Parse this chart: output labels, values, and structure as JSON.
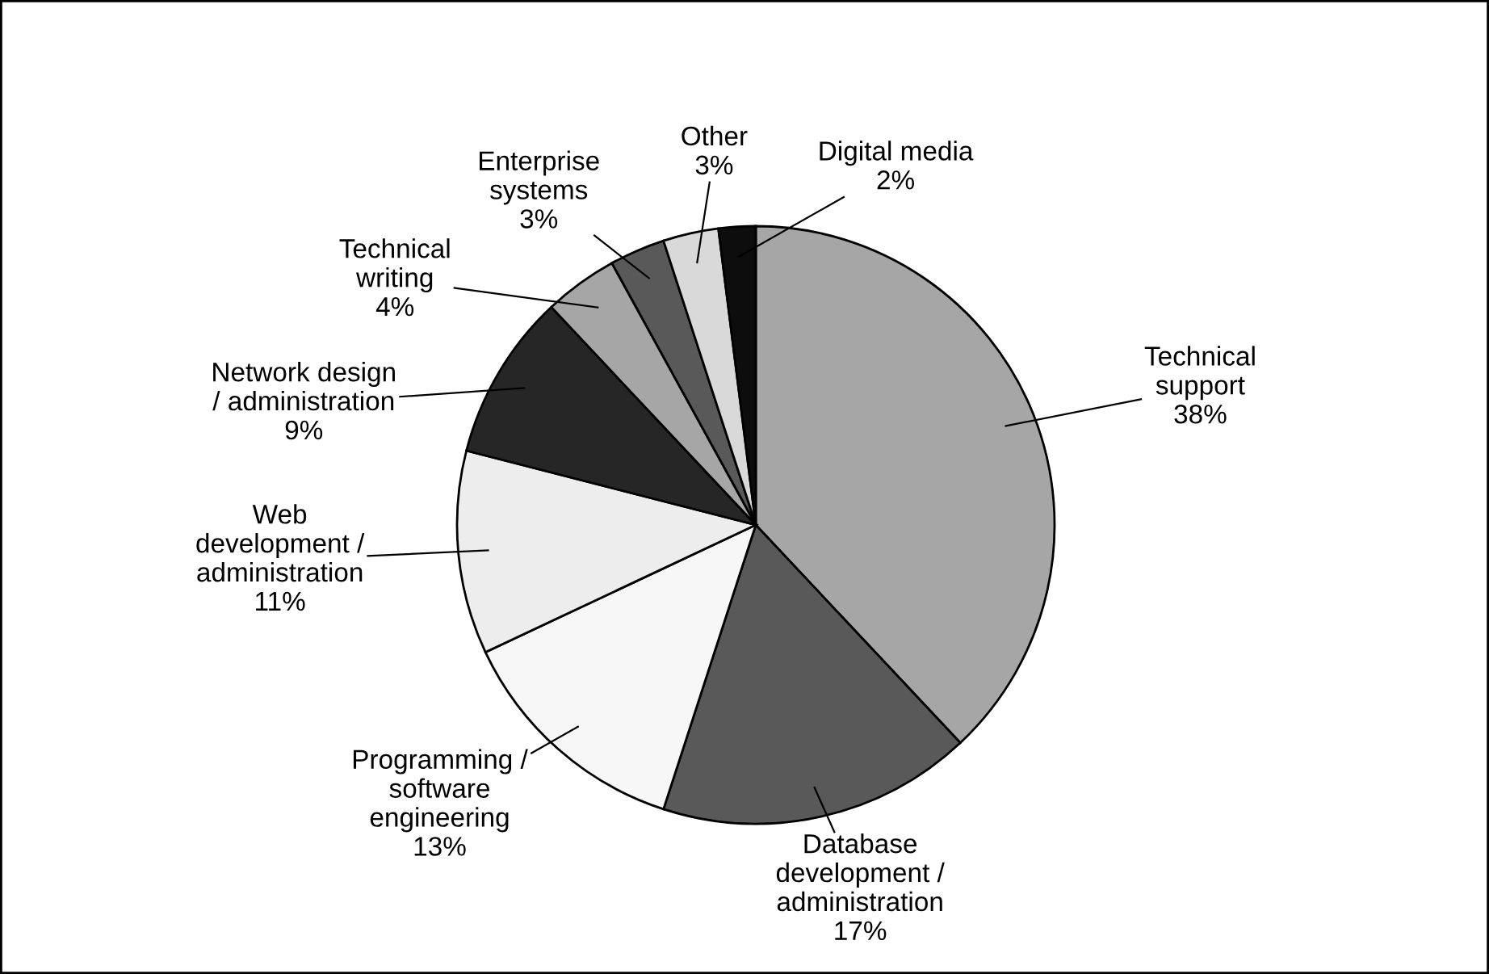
{
  "chart_data": {
    "type": "pie",
    "categories": [
      "Technical\nsupport",
      "Database\ndevelopment /\nadministration",
      "Programming /\nsoftware\nengineering",
      "Web\ndevelopment /\nadministration",
      "Network design\n/ administration",
      "Technical\nwriting",
      "Enterprise\nsystems",
      "Other",
      "Digital media"
    ],
    "values": [
      38,
      17,
      13,
      11,
      9,
      4,
      3,
      3,
      2
    ],
    "value_labels": [
      "38%",
      "17%",
      "13%",
      "11%",
      "9%",
      "4%",
      "3%",
      "3%",
      "2%"
    ],
    "colors": [
      "#a6a6a6",
      "#595959",
      "#f7f7f7",
      "#ededed",
      "#262626",
      "#a6a6a6",
      "#595959",
      "#d9d9d9",
      "#0d0d0d"
    ]
  }
}
